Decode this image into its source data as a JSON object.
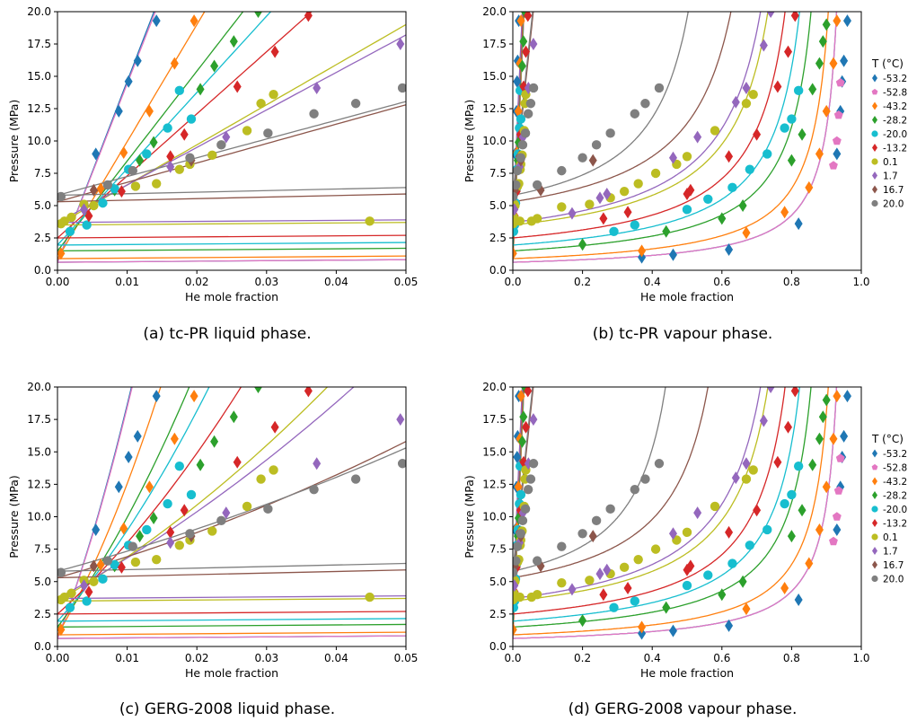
{
  "chart_data": [
    {
      "type": "scatter",
      "subplot": "a",
      "title": "(a) tc-PR liquid phase.",
      "xlabel": "He mole fraction",
      "ylabel": "Pressure (MPa)",
      "xlim": [
        0,
        0.05
      ],
      "ylim": [
        0,
        20
      ],
      "xticks": [
        "0.00",
        "0.01",
        "0.02",
        "0.03",
        "0.04",
        "0.05"
      ],
      "yticks": [
        "0.0",
        "2.5",
        "5.0",
        "7.5",
        "10.0",
        "12.5",
        "15.0",
        "17.5",
        "20.0"
      ],
      "legend": false,
      "curve_model": "tc-PR",
      "phase": "liquid"
    },
    {
      "type": "scatter",
      "subplot": "b",
      "title": "(b) tc-PR vapour phase.",
      "xlabel": "He mole fraction",
      "ylabel": "Pressure (MPa)",
      "xlim": [
        0,
        1.0
      ],
      "ylim": [
        0,
        20
      ],
      "xticks": [
        "0.0",
        "0.2",
        "0.4",
        "0.6",
        "0.8",
        "1.0"
      ],
      "yticks": [
        "0.0",
        "2.5",
        "5.0",
        "7.5",
        "10.0",
        "12.5",
        "15.0",
        "17.5",
        "20.0"
      ],
      "legend": true,
      "legend_position": "right",
      "curve_model": "tc-PR",
      "phase": "vapour"
    },
    {
      "type": "scatter",
      "subplot": "c",
      "title": "(c) GERG-2008 liquid phase.",
      "xlabel": "He mole fraction",
      "ylabel": "Pressure (MPa)",
      "xlim": [
        0,
        0.05
      ],
      "ylim": [
        0,
        20
      ],
      "xticks": [
        "0.00",
        "0.01",
        "0.02",
        "0.03",
        "0.04",
        "0.05"
      ],
      "yticks": [
        "0.0",
        "2.5",
        "5.0",
        "7.5",
        "10.0",
        "12.5",
        "15.0",
        "17.5",
        "20.0"
      ],
      "legend": false,
      "curve_model": "GERG-2008",
      "phase": "liquid"
    },
    {
      "type": "scatter",
      "subplot": "d",
      "title": "(d) GERG-2008 vapour phase.",
      "xlabel": "He mole fraction",
      "ylabel": "Pressure (MPa)",
      "xlim": [
        0,
        1.0
      ],
      "ylim": [
        0,
        20
      ],
      "xticks": [
        "0.0",
        "0.2",
        "0.4",
        "0.6",
        "0.8",
        "1.0"
      ],
      "yticks": [
        "0.0",
        "2.5",
        "5.0",
        "7.5",
        "10.0",
        "12.5",
        "15.0",
        "17.5",
        "20.0"
      ],
      "legend": true,
      "legend_position": "right",
      "curve_model": "GERG-2008",
      "phase": "vapour"
    }
  ],
  "legend": {
    "title": "T (°C)",
    "entries": [
      {
        "label": "-53.2",
        "color": "#1f77b4",
        "marker": "diamond"
      },
      {
        "label": "-52.8",
        "color": "#e377c2",
        "marker": "pentagon"
      },
      {
        "label": "-43.2",
        "color": "#ff7f0e",
        "marker": "diamond"
      },
      {
        "label": "-28.2",
        "color": "#2ca02c",
        "marker": "diamond"
      },
      {
        "label": "-20.0",
        "color": "#17becf",
        "marker": "circle"
      },
      {
        "label": "-13.2",
        "color": "#d62728",
        "marker": "diamond"
      },
      {
        "label": "0.1",
        "color": "#bcbd22",
        "marker": "circle"
      },
      {
        "label": "1.7",
        "color": "#9467bd",
        "marker": "diamond"
      },
      {
        "label": "16.7",
        "color": "#8c564b",
        "marker": "diamond"
      },
      {
        "label": "20.0",
        "color": "#7f7f7f",
        "marker": "circle"
      }
    ]
  },
  "series": [
    {
      "label": "-53.2",
      "psat": 0.62,
      "liq_slope": 1400,
      "liq_curv": 0,
      "ccurv": 40000,
      "vap_a": 0.965,
      "vap_b": 0.25,
      "liq_pts": [
        [
          0.0055,
          9.0
        ],
        [
          0.0088,
          12.3
        ],
        [
          0.0102,
          14.6
        ],
        [
          0.0115,
          16.2
        ],
        [
          0.0142,
          19.3
        ]
      ],
      "vap_pts": [
        [
          0.37,
          1.0
        ],
        [
          0.46,
          1.2
        ],
        [
          0.62,
          1.6
        ],
        [
          0.82,
          3.6
        ],
        [
          0.93,
          9.0
        ],
        [
          0.94,
          12.3
        ],
        [
          0.945,
          14.6
        ],
        [
          0.95,
          16.2
        ],
        [
          0.96,
          19.3
        ]
      ]
    },
    {
      "label": "-52.8",
      "psat": 0.62,
      "liq_slope": 1380,
      "liq_curv": 0,
      "ccurv": 40000,
      "vap_a": 0.965,
      "vap_b": 0.25,
      "liq_pts": [],
      "vap_pts": [
        [
          0.92,
          8.1
        ],
        [
          0.93,
          10.0
        ],
        [
          0.935,
          12.0
        ],
        [
          0.94,
          14.5
        ]
      ]
    },
    {
      "label": "-43.2",
      "psat": 0.9,
      "liq_slope": 905,
      "liq_curv": 0,
      "ccurv": 26000,
      "vap_a": 0.955,
      "vap_b": 0.35,
      "liq_pts": [
        [
          0.0005,
          1.3
        ],
        [
          0.0062,
          6.3
        ],
        [
          0.0095,
          9.1
        ],
        [
          0.0132,
          12.3
        ],
        [
          0.0168,
          16.0
        ],
        [
          0.0196,
          19.3
        ]
      ],
      "vap_pts": [
        [
          0.37,
          1.5
        ],
        [
          0.67,
          2.9
        ],
        [
          0.78,
          4.5
        ],
        [
          0.85,
          6.4
        ],
        [
          0.88,
          9.0
        ],
        [
          0.9,
          12.3
        ],
        [
          0.92,
          16.0
        ],
        [
          0.93,
          19.3
        ]
      ]
    },
    {
      "label": "-28.2",
      "psat": 1.5,
      "liq_slope": 695,
      "liq_curv": 0,
      "ccurv": 15000,
      "vap_a": 0.925,
      "vap_b": 0.5,
      "liq_pts": [
        [
          0.0082,
          6.2
        ],
        [
          0.0118,
          8.5
        ],
        [
          0.0138,
          9.9
        ],
        [
          0.0205,
          14.0
        ],
        [
          0.0225,
          15.8
        ],
        [
          0.0253,
          17.7
        ],
        [
          0.0288,
          20.0
        ]
      ],
      "vap_pts": [
        [
          0.2,
          2.0
        ],
        [
          0.44,
          3.0
        ],
        [
          0.6,
          4.0
        ],
        [
          0.66,
          5.0
        ],
        [
          0.8,
          8.5
        ],
        [
          0.83,
          10.5
        ],
        [
          0.86,
          14.0
        ],
        [
          0.88,
          16.0
        ],
        [
          0.89,
          17.7
        ],
        [
          0.9,
          19.0
        ]
      ]
    },
    {
      "label": "-20.0",
      "psat": 1.95,
      "liq_slope": 590,
      "liq_curv": 0,
      "ccurv": 11000,
      "vap_a": 0.905,
      "vap_b": 0.6,
      "liq_pts": [
        [
          0.0018,
          3.0
        ],
        [
          0.0042,
          3.5
        ],
        [
          0.0065,
          5.2
        ],
        [
          0.0082,
          6.3
        ],
        [
          0.0102,
          7.8
        ],
        [
          0.0128,
          9.0
        ],
        [
          0.0158,
          11.0
        ],
        [
          0.0175,
          13.9
        ],
        [
          0.0192,
          11.7
        ]
      ],
      "vap_pts": [
        [
          0.29,
          3.0
        ],
        [
          0.35,
          3.5
        ],
        [
          0.5,
          4.7
        ],
        [
          0.56,
          5.5
        ],
        [
          0.63,
          6.4
        ],
        [
          0.68,
          7.8
        ],
        [
          0.73,
          9.0
        ],
        [
          0.78,
          11.0
        ],
        [
          0.8,
          11.7
        ],
        [
          0.82,
          13.9
        ]
      ]
    },
    {
      "label": "-13.2",
      "psat": 2.5,
      "liq_slope": 480,
      "liq_curv": 0,
      "ccurv": 7000,
      "vap_a": 0.875,
      "vap_b": 0.7,
      "liq_pts": [
        [
          0.0045,
          4.2
        ],
        [
          0.0092,
          6.1
        ],
        [
          0.0162,
          8.8
        ],
        [
          0.0182,
          10.5
        ],
        [
          0.0258,
          14.2
        ],
        [
          0.0312,
          16.9
        ],
        [
          0.036,
          19.7
        ]
      ],
      "vap_pts": [
        [
          0.26,
          4.0
        ],
        [
          0.33,
          4.5
        ],
        [
          0.5,
          5.9
        ],
        [
          0.51,
          6.2
        ],
        [
          0.62,
          8.8
        ],
        [
          0.7,
          10.5
        ],
        [
          0.76,
          14.2
        ],
        [
          0.79,
          16.9
        ],
        [
          0.81,
          19.7
        ]
      ]
    },
    {
      "label": "0.1",
      "psat": 3.5,
      "liq_slope": 310,
      "liq_curv": 0,
      "ccurv": 3000,
      "vap_a": 0.845,
      "vap_b": 0.85,
      "liq_pts": [
        [
          0.0005,
          3.6
        ],
        [
          0.001,
          3.8
        ],
        [
          0.002,
          4.1
        ],
        [
          0.0038,
          5.1
        ],
        [
          0.0052,
          5.0
        ],
        [
          0.0112,
          6.5
        ],
        [
          0.0142,
          6.7
        ],
        [
          0.0175,
          7.8
        ],
        [
          0.019,
          8.2
        ],
        [
          0.0222,
          8.9
        ],
        [
          0.0272,
          10.8
        ],
        [
          0.0292,
          12.9
        ],
        [
          0.031,
          13.6
        ],
        [
          0.0448,
          3.8
        ]
      ],
      "vap_pts": [
        [
          0.02,
          3.8
        ],
        [
          0.07,
          4.0
        ],
        [
          0.14,
          4.9
        ],
        [
          0.22,
          5.1
        ],
        [
          0.28,
          5.6
        ],
        [
          0.32,
          6.1
        ],
        [
          0.36,
          6.7
        ],
        [
          0.41,
          7.5
        ],
        [
          0.47,
          8.2
        ],
        [
          0.5,
          8.8
        ],
        [
          0.58,
          10.8
        ],
        [
          0.67,
          12.9
        ],
        [
          0.69,
          13.6
        ]
      ]
    },
    {
      "label": "1.7",
      "psat": 3.7,
      "liq_slope": 290,
      "liq_curv": 0,
      "ccurv": 2200,
      "vap_a": 0.835,
      "vap_b": 0.95,
      "liq_pts": [
        [
          0.0038,
          4.7
        ],
        [
          0.0162,
          8.0
        ],
        [
          0.0242,
          10.3
        ],
        [
          0.0372,
          14.1
        ],
        [
          0.0492,
          17.5
        ]
      ],
      "vap_pts": [
        [
          0.17,
          4.4
        ],
        [
          0.25,
          5.6
        ],
        [
          0.27,
          5.9
        ],
        [
          0.46,
          8.7
        ],
        [
          0.53,
          10.3
        ],
        [
          0.64,
          13.0
        ],
        [
          0.67,
          14.1
        ],
        [
          0.72,
          17.4
        ],
        [
          0.74,
          20.0
        ]
      ]
    },
    {
      "label": "16.7",
      "psat": 5.3,
      "liq_slope": 150,
      "liq_curv": 0,
      "ccurv": 1200,
      "vap_a": 0.76,
      "vap_b": 1.05,
      "liq_pts": [
        [
          0.0052,
          6.2
        ],
        [
          0.0192,
          8.5
        ]
      ],
      "vap_pts": [
        [
          0.08,
          6.2
        ],
        [
          0.23,
          8.5
        ]
      ]
    },
    {
      "label": "20.0",
      "psat": 5.8,
      "liq_slope": 145,
      "liq_curv": 0,
      "ccurv": 900,
      "vap_a": 0.62,
      "vap_b": 1.1,
      "liq_pts": [
        [
          0.0005,
          5.7
        ],
        [
          0.0072,
          6.6
        ],
        [
          0.0108,
          7.7
        ],
        [
          0.019,
          8.7
        ],
        [
          0.0235,
          9.7
        ],
        [
          0.0302,
          10.6
        ],
        [
          0.0368,
          12.1
        ],
        [
          0.0428,
          12.9
        ],
        [
          0.0495,
          14.1
        ]
      ],
      "vap_pts": [
        [
          0.07,
          6.6
        ],
        [
          0.14,
          7.7
        ],
        [
          0.2,
          8.7
        ],
        [
          0.24,
          9.7
        ],
        [
          0.28,
          10.6
        ],
        [
          0.35,
          12.1
        ],
        [
          0.38,
          12.9
        ],
        [
          0.42,
          14.1
        ]
      ]
    }
  ],
  "colors": {
    "axis": "#000000",
    "background": "#ffffff"
  }
}
